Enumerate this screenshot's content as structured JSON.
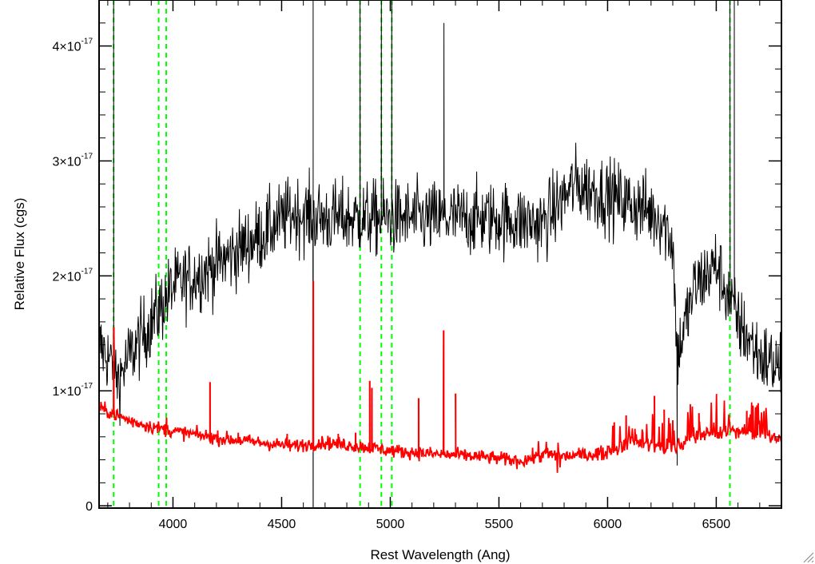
{
  "chart_data": {
    "type": "line",
    "xlabel": "Rest Wavelength (Ang)",
    "ylabel": "Relative Flux (cgs)",
    "xlim": [
      3660,
      6800
    ],
    "ylim": [
      -2e-19,
      4.4e-17
    ],
    "x_ticks": [
      4000,
      4500,
      5000,
      5500,
      6000,
      6500
    ],
    "x_tick_labels": [
      "4000",
      "4500",
      "5000",
      "5500",
      "6000",
      "6500"
    ],
    "y_ticks": [
      0,
      1e-17,
      2e-17,
      3e-17,
      4e-17
    ],
    "y_tick_labels": [
      {
        "value": "0",
        "mantissa": "0",
        "exponent": ""
      },
      {
        "value": "1e-17",
        "mantissa": "1×10",
        "exponent": "-17"
      },
      {
        "value": "2e-17",
        "mantissa": "2×10",
        "exponent": "-17"
      },
      {
        "value": "3e-17",
        "mantissa": "3×10",
        "exponent": "-17"
      },
      {
        "value": "4e-17",
        "mantissa": "4×10",
        "exponent": "-17"
      }
    ],
    "grid": false,
    "legend": "none",
    "series": [
      {
        "style": "observed-spectrum",
        "color": "#000000",
        "continuum": {
          "x": [
            3660,
            3700,
            3750,
            3800,
            3900,
            4000,
            4200,
            4400,
            4550,
            4700,
            4900,
            5100,
            5300,
            5500,
            5700,
            5850,
            6000,
            6150,
            6250,
            6300,
            6320,
            6400,
            6500,
            6600,
            6700,
            6800
          ],
          "y": [
            1.4e-17,
            1.3e-17,
            1.1e-17,
            1.3e-17,
            1.6e-17,
            1.9e-17,
            2.1e-17,
            2.35e-17,
            2.55e-17,
            2.5e-17,
            2.5e-17,
            2.5e-17,
            2.5e-17,
            2.5e-17,
            2.45e-17,
            2.8e-17,
            2.7e-17,
            2.6e-17,
            2.5e-17,
            2.3e-17,
            1.3e-17,
            1.9e-17,
            2.1e-17,
            1.6e-17,
            1.3e-17,
            1.2e-17
          ]
        },
        "noise_rms": 3e-18,
        "features": [
          {
            "x": 3727,
            "y": 4.6e-17
          },
          {
            "x": 4645,
            "y": -1e-18
          },
          {
            "x": 4645,
            "y": 4.6e-17
          },
          {
            "x": 4861,
            "y": 4.6e-17
          },
          {
            "x": 4959,
            "y": 4.6e-17
          },
          {
            "x": 5007,
            "y": 4.6e-17
          },
          {
            "x": 5247,
            "y": 4.2e-17
          },
          {
            "x": 6563,
            "y": 4.6e-17
          },
          {
            "x": 6583,
            "y": 4.6e-17
          },
          {
            "x": 6320,
            "y": 3.5e-18
          }
        ]
      },
      {
        "style": "model-fit",
        "color": "#ff0000",
        "continuum": {
          "x": [
            3660,
            3700,
            3750,
            3800,
            3900,
            4000,
            4200,
            4400,
            4550,
            4700,
            4850,
            5000,
            5200,
            5400,
            5600,
            5700,
            5800,
            6000,
            6100,
            6200,
            6300,
            6400,
            6500,
            6600,
            6700,
            6800
          ],
          "y": [
            8.5e-18,
            8.2e-18,
            7.8e-18,
            7.4e-18,
            6.9e-18,
            6.5e-18,
            5.9e-18,
            5.5e-18,
            5.2e-18,
            5.5e-18,
            5.2e-18,
            4.8e-18,
            4.5e-18,
            4.3e-18,
            3.9e-18,
            4.4e-18,
            4.3e-18,
            4.6e-18,
            5.5e-18,
            5.3e-18,
            4.9e-18,
            6e-18,
            6.2e-18,
            6.5e-18,
            6.2e-18,
            5.8e-18
          ]
        },
        "lines": [
          {
            "x": 3727,
            "y": 1.55e-17
          },
          {
            "x": 3970,
            "y": 7.6e-18
          },
          {
            "x": 4170,
            "y": 1.07e-17
          },
          {
            "x": 4300,
            "y": 6.3e-18
          },
          {
            "x": 4525,
            "y": 6.2e-18
          },
          {
            "x": 4645,
            "y": 1.95e-17
          },
          {
            "x": 4760,
            "y": 6.2e-18
          },
          {
            "x": 4840,
            "y": 6.3e-18
          },
          {
            "x": 4905,
            "y": 1.08e-17
          },
          {
            "x": 4915,
            "y": 1.02e-17
          },
          {
            "x": 5130,
            "y": 9.3e-18
          },
          {
            "x": 5245,
            "y": 1.52e-17
          },
          {
            "x": 5300,
            "y": 9.7e-18
          },
          {
            "x": 6030,
            "y": 7.2e-18
          },
          {
            "x": 6085,
            "y": 7.8e-18
          },
          {
            "x": 6215,
            "y": 9.5e-18
          },
          {
            "x": 6260,
            "y": 8.3e-18
          },
          {
            "x": 6420,
            "y": 8e-18
          },
          {
            "x": 6640,
            "y": 8.2e-18
          }
        ],
        "noise_rms": 3e-19
      }
    ],
    "reference_lines": [
      {
        "x": 3727,
        "color": "#00ff00",
        "style": "dashed"
      },
      {
        "x": 3934,
        "color": "#00ff00",
        "style": "dashed"
      },
      {
        "x": 3969,
        "color": "#00ff00",
        "style": "dashed"
      },
      {
        "x": 4861,
        "color": "#00ff00",
        "style": "dashed"
      },
      {
        "x": 4959,
        "color": "#00ff00",
        "style": "dashed"
      },
      {
        "x": 5007,
        "color": "#00ff00",
        "style": "dashed"
      },
      {
        "x": 6563,
        "color": "#00ff00",
        "style": "dashed"
      }
    ]
  }
}
